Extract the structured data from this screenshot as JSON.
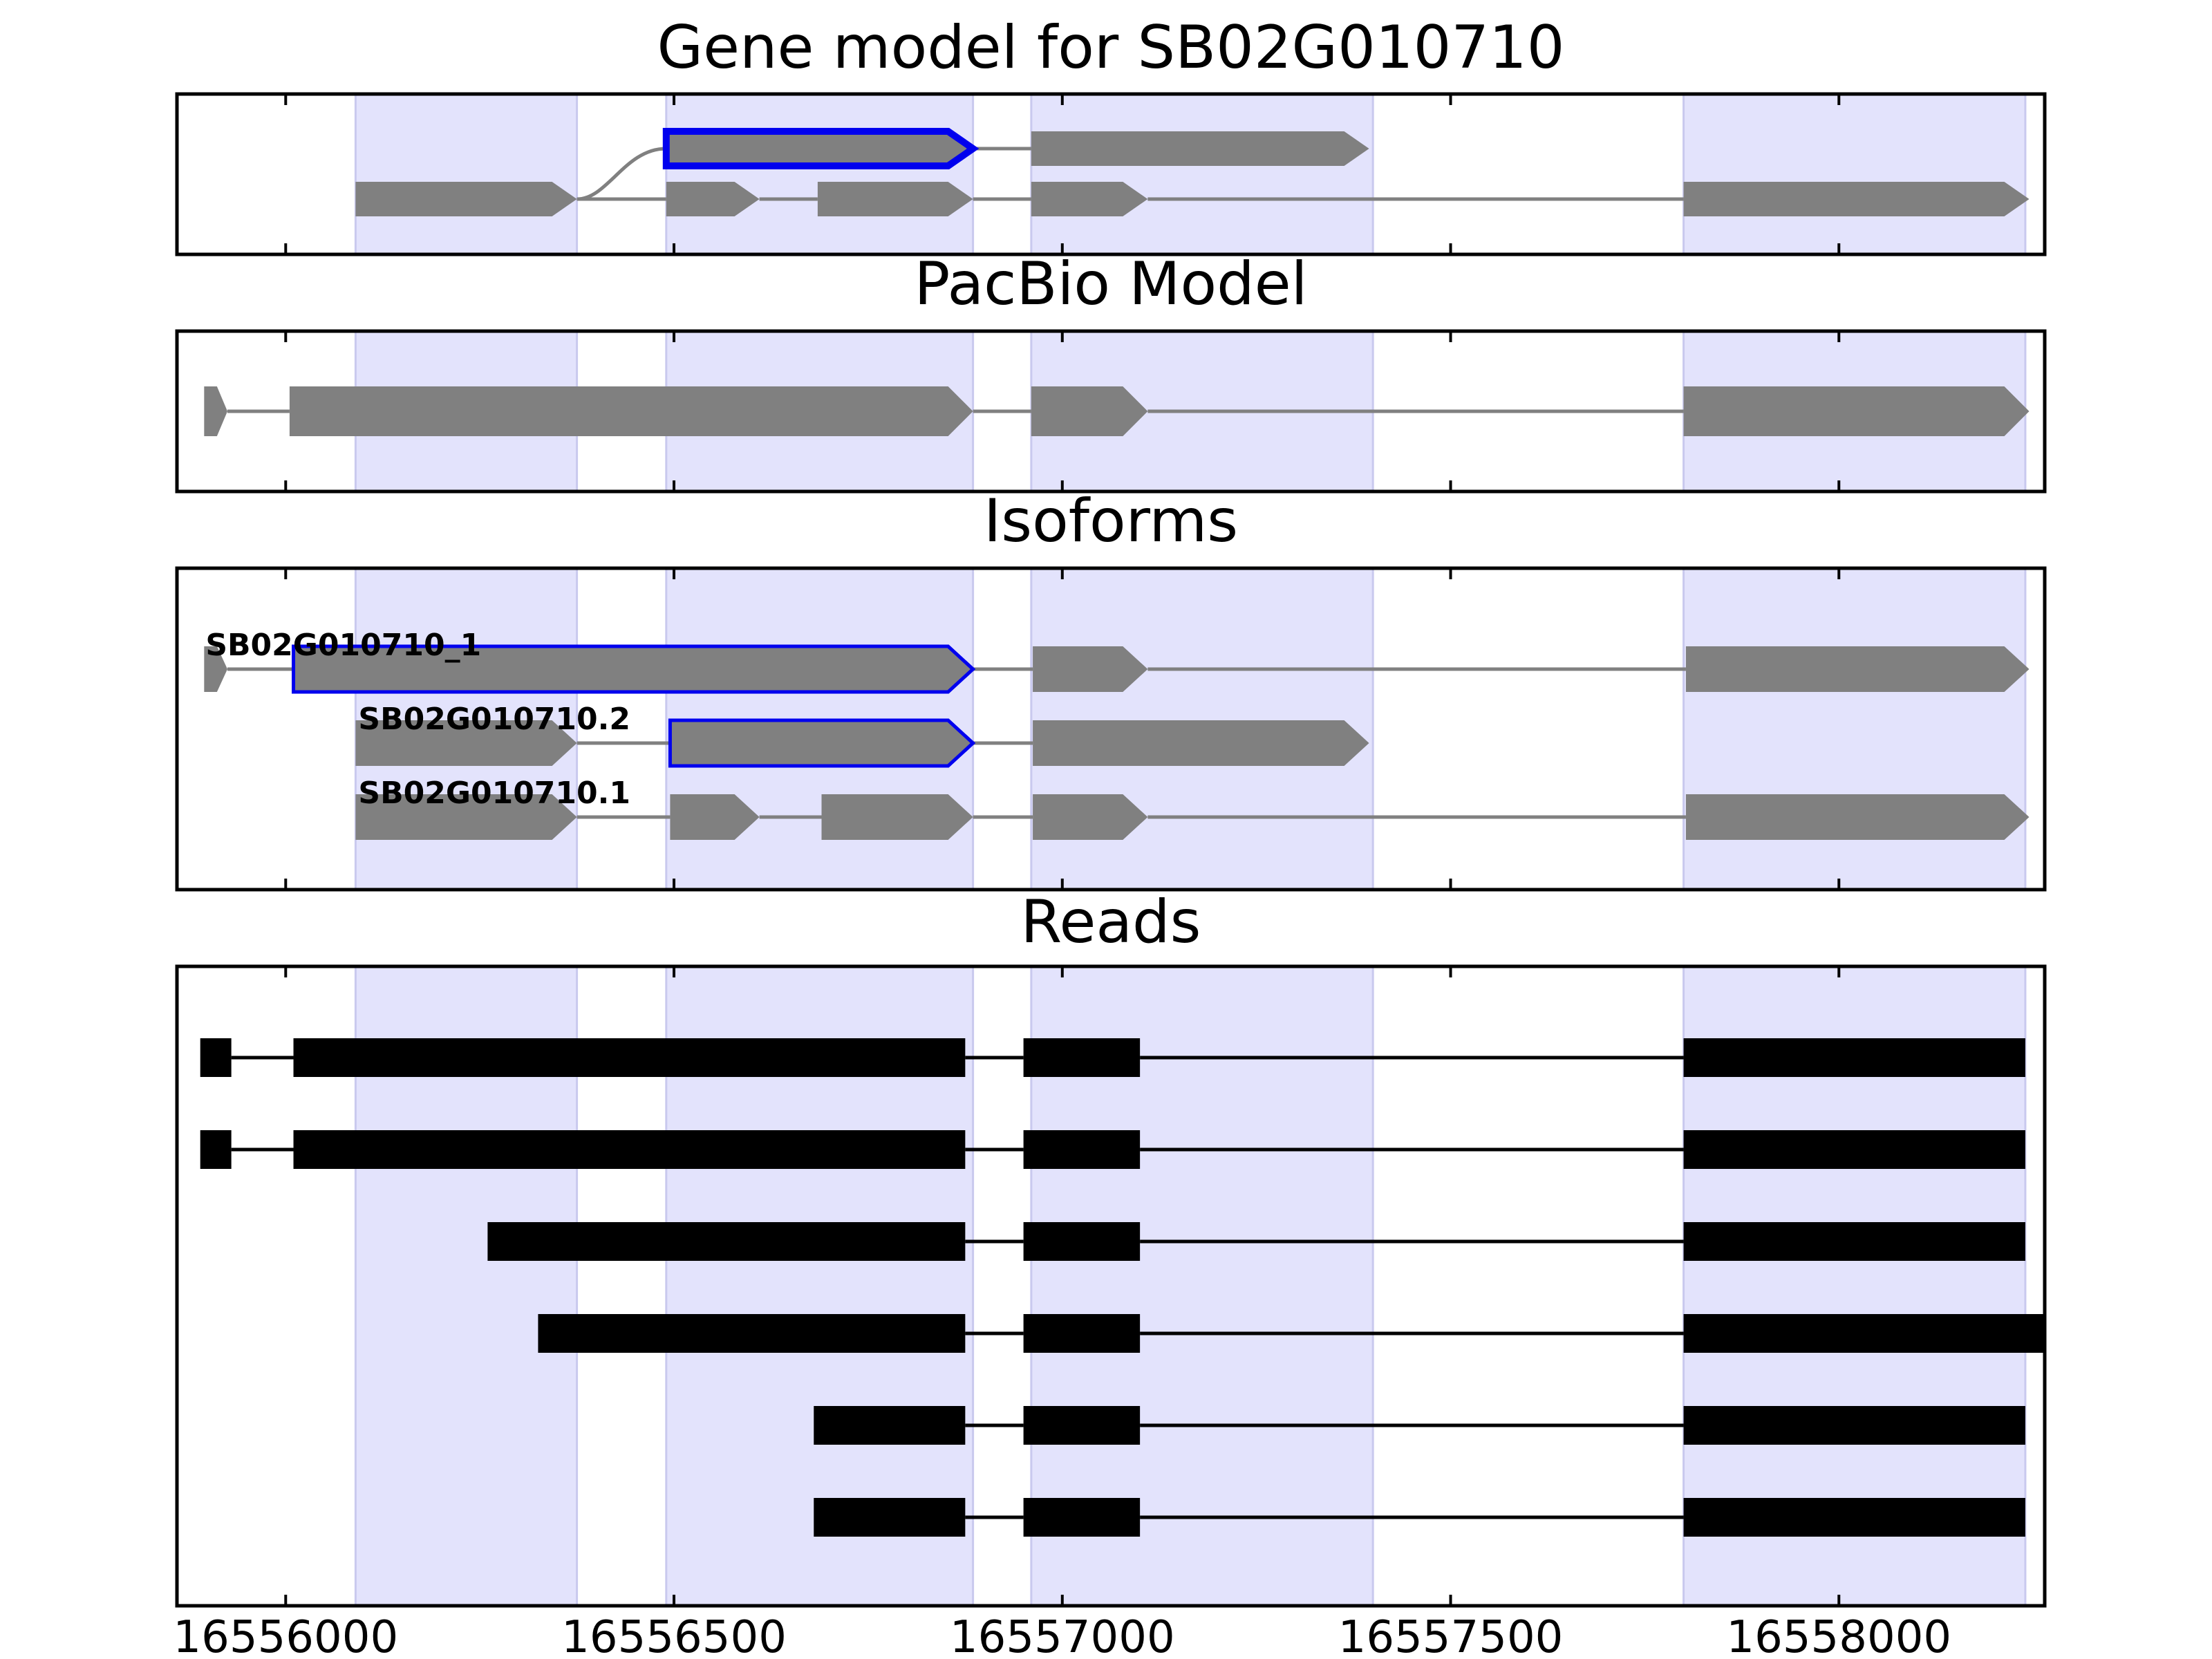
{
  "chart_data": {
    "type": "gene-track",
    "title": "Gene model for SB02G010710",
    "x_ticks": [
      16556000,
      16556500,
      16557000,
      16557500,
      16558000
    ],
    "x_tick_labels": [
      "16556000",
      "16556500",
      "16557000",
      "16557500",
      "16558000"
    ],
    "xlim": [
      16555860,
      16558265
    ],
    "grid": false,
    "colors": {
      "highlight_band": "#e3e3fc",
      "feature": "#808080",
      "selected_outline": "#0000ee",
      "read": "#000000",
      "axes": "#000000"
    },
    "highlight_regions": [
      [
        16556090,
        16556375
      ],
      [
        16556490,
        16556885
      ],
      [
        16556960,
        16557400
      ],
      [
        16557800,
        16558240
      ]
    ],
    "panels": [
      {
        "title": "Gene model for SB02G010710",
        "kind": "gene_model",
        "transcripts": [
          {
            "exons": [
              [
                16556490,
                16556885
              ],
              [
                16556960,
                16557395
              ]
            ],
            "highlighted": [
              0
            ],
            "bold_outline": true,
            "connect_from_exon_end": 16556375
          },
          {
            "exons": [
              [
                16556090,
                16556375
              ],
              [
                16556490,
                16556610
              ],
              [
                16556685,
                16556885
              ],
              [
                16556960,
                16557110
              ],
              [
                16557800,
                16558245
              ]
            ]
          }
        ]
      },
      {
        "title": "PacBio Model",
        "kind": "model",
        "transcripts": [
          {
            "exons": [
              [
                16555895,
                16555925
              ],
              [
                16556005,
                16556885
              ],
              [
                16556960,
                16557110
              ],
              [
                16557800,
                16558245
              ]
            ]
          }
        ]
      },
      {
        "title": "Isoforms",
        "kind": "isoforms",
        "transcripts": [
          {
            "label": "SB02G010710_1",
            "exons": [
              [
                16555895,
                16555925
              ],
              [
                16556010,
                16556885
              ],
              [
                16556962,
                16557110
              ],
              [
                16557803,
                16558245
              ]
            ],
            "highlighted": [
              1
            ]
          },
          {
            "label": "SB02G010710.2",
            "exons": [
              [
                16556090,
                16556375
              ],
              [
                16556495,
                16556885
              ],
              [
                16556962,
                16557395
              ]
            ],
            "highlighted": [
              1
            ]
          },
          {
            "label": "SB02G010710.1",
            "exons": [
              [
                16556090,
                16556375
              ],
              [
                16556495,
                16556610
              ],
              [
                16556690,
                16556885
              ],
              [
                16556962,
                16557110
              ],
              [
                16557803,
                16558245
              ]
            ]
          }
        ]
      },
      {
        "title": "Reads",
        "kind": "reads",
        "reads": [
          {
            "exons": [
              [
                16555890,
                16555930
              ],
              [
                16556010,
                16556875
              ],
              [
                16556950,
                16557100
              ],
              [
                16557800,
                16558240
              ]
            ]
          },
          {
            "exons": [
              [
                16555890,
                16555930
              ],
              [
                16556010,
                16556875
              ],
              [
                16556950,
                16557100
              ],
              [
                16557800,
                16558240
              ]
            ]
          },
          {
            "exons": [
              [
                16556260,
                16556875
              ],
              [
                16556950,
                16557100
              ],
              [
                16557800,
                16558240
              ]
            ]
          },
          {
            "exons": [
              [
                16556325,
                16556875
              ],
              [
                16556950,
                16557100
              ],
              [
                16557800,
                16558265
              ]
            ]
          },
          {
            "exons": [
              [
                16556680,
                16556875
              ],
              [
                16556950,
                16557100
              ],
              [
                16557800,
                16558240
              ]
            ]
          },
          {
            "exons": [
              [
                16556680,
                16556875
              ],
              [
                16556950,
                16557100
              ],
              [
                16557800,
                16558240
              ]
            ]
          }
        ]
      }
    ]
  }
}
